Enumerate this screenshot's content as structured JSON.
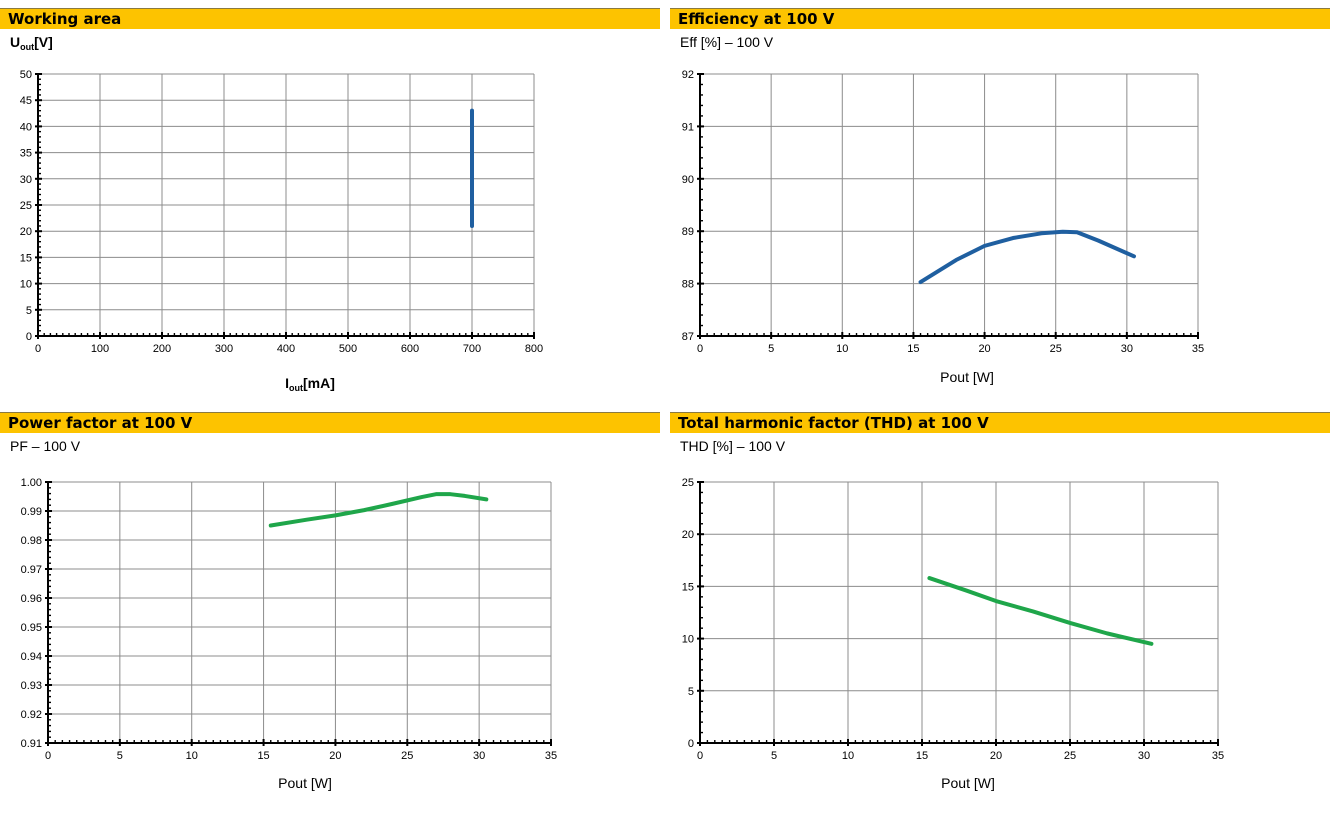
{
  "chart_data": [
    {
      "type": "line",
      "title": "Working area",
      "ylabel_main": "U",
      "ylabel_sub": "out",
      "ylabel_unit": "[V]",
      "xlabel_main": "I",
      "xlabel_sub": "out",
      "xlabel_unit": "[mA]",
      "xlim": [
        0,
        800
      ],
      "ylim": [
        0,
        50
      ],
      "xticks": [
        0,
        100,
        200,
        300,
        400,
        500,
        600,
        700,
        800
      ],
      "yticks": [
        0,
        5,
        10,
        15,
        20,
        25,
        30,
        35,
        40,
        45,
        50
      ],
      "grid": true,
      "series": [
        {
          "x": [
            700,
            700
          ],
          "y": [
            21,
            43
          ],
          "color": "#1F5FA0"
        }
      ]
    },
    {
      "type": "line",
      "title": "Efficiency at 100 V",
      "ylabel": "Eff [%] – 100 V",
      "xlabel": "Pout [W]",
      "xlim": [
        0,
        35
      ],
      "ylim": [
        87,
        92
      ],
      "xticks": [
        0,
        5,
        10,
        15,
        20,
        25,
        30,
        35
      ],
      "yticks": [
        87,
        88,
        89,
        90,
        91,
        92
      ],
      "grid": true,
      "series": [
        {
          "x": [
            15.5,
            18,
            20,
            22,
            24,
            25.5,
            26.5,
            28,
            30.5
          ],
          "y": [
            88.03,
            88.45,
            88.72,
            88.87,
            88.96,
            88.99,
            88.98,
            88.82,
            88.52
          ],
          "color": "#1F5FA0"
        }
      ]
    },
    {
      "type": "line",
      "title": "Power factor at 100 V",
      "ylabel": "PF – 100 V",
      "xlabel": "Pout [W]",
      "xlim": [
        0,
        35
      ],
      "ylim": [
        0.91,
        1.0
      ],
      "xticks": [
        0,
        5,
        10,
        15,
        20,
        25,
        30,
        35
      ],
      "yticks": [
        "0.91",
        "0.92",
        "0.93",
        "0.94",
        "0.95",
        "0.96",
        "0.97",
        "0.98",
        "0.99",
        "1.00"
      ],
      "grid": true,
      "series": [
        {
          "x": [
            15.5,
            18,
            20,
            22,
            24,
            26,
            27,
            28,
            29,
            30.5
          ],
          "y": [
            0.985,
            0.987,
            0.9885,
            0.9903,
            0.9925,
            0.9948,
            0.9958,
            0.9958,
            0.9952,
            0.994
          ],
          "color": "#1FA64A"
        }
      ]
    },
    {
      "type": "line",
      "title": "Total harmonic factor (THD) at 100 V",
      "ylabel": "THD [%] – 100 V",
      "xlabel": "Pout [W]",
      "xlim": [
        0,
        35
      ],
      "ylim": [
        0,
        25
      ],
      "xticks": [
        0,
        5,
        10,
        15,
        20,
        25,
        30,
        35
      ],
      "yticks": [
        0,
        5,
        10,
        15,
        20,
        25
      ],
      "grid": true,
      "series": [
        {
          "x": [
            15.5,
            18,
            20,
            22.5,
            25,
            27.5,
            30.5
          ],
          "y": [
            15.8,
            14.6,
            13.6,
            12.6,
            11.5,
            10.5,
            9.5
          ],
          "color": "#1FA64A"
        }
      ]
    }
  ]
}
